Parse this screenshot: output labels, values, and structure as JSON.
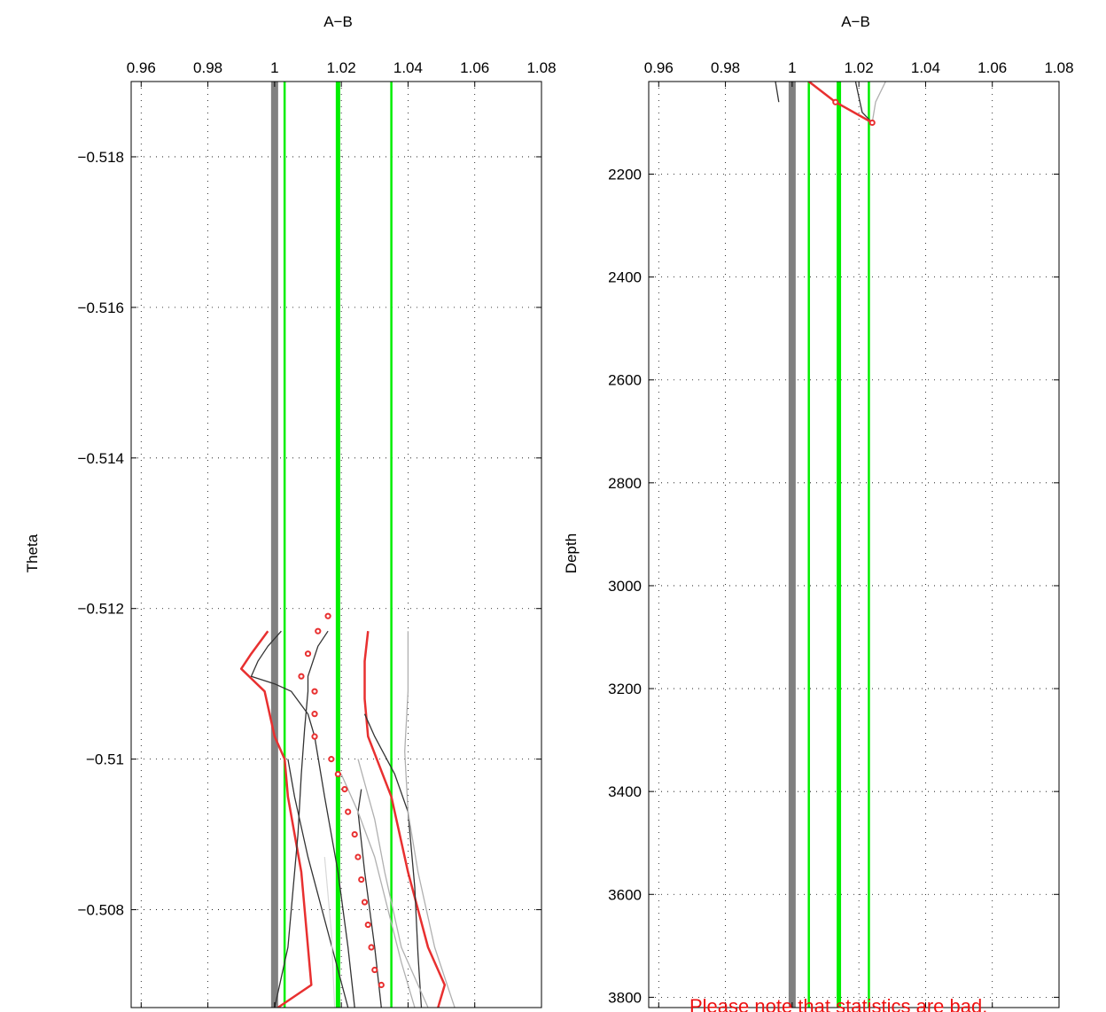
{
  "chart_data": [
    {
      "type": "line",
      "title": "A−B",
      "xlabel": "",
      "ylabel": "Theta",
      "xlim": [
        0.957,
        1.08
      ],
      "ylim": [
        -0.519,
        -0.5067
      ],
      "y_reversed": true,
      "x_axis_position": "top",
      "grid": true,
      "x_ticks": [
        "0.96",
        "0.98",
        "1",
        "1.02",
        "1.04",
        "1.06",
        "1.08"
      ],
      "y_ticks": [
        "−0.508",
        "−0.51",
        "−0.512",
        "−0.514",
        "−0.516",
        "−0.518"
      ],
      "reference_lines": [
        {
          "x": 1.0,
          "color": "#808080",
          "width": 8
        },
        {
          "x": 1.003,
          "color": "#00ee00",
          "width": 2.5
        },
        {
          "x": 1.019,
          "color": "#00ee00",
          "width": 5
        },
        {
          "x": 1.035,
          "color": "#00ee00",
          "width": 2.5
        }
      ],
      "series": [
        {
          "color": "#e83030",
          "width": 2.5,
          "x": [
            1.001,
            1.011,
            1.008,
            1.004,
            1.003,
            1.0,
            0.997,
            0.99,
            0.993,
            0.998
          ],
          "y": [
            -0.5067,
            -0.507,
            -0.5085,
            -0.5095,
            -0.51,
            -0.5103,
            -0.5109,
            -0.5112,
            -0.5114,
            -0.5117
          ]
        },
        {
          "color": "#e83030",
          "width": 2.5,
          "x": [
            1.049,
            1.051,
            1.046,
            1.04,
            1.035,
            1.028,
            1.027,
            1.027,
            1.028
          ],
          "y": [
            -0.5067,
            -0.507,
            -0.5075,
            -0.5085,
            -0.5095,
            -0.5103,
            -0.5108,
            -0.5113,
            -0.5117
          ]
        },
        {
          "color": "#333333",
          "width": 1.3,
          "x": [
            1.0,
            1.004,
            1.007,
            1.008,
            1.009,
            1.01,
            1.01,
            1.013,
            1.016
          ],
          "y": [
            -0.5067,
            -0.5075,
            -0.509,
            -0.5098,
            -0.5104,
            -0.5109,
            -0.5111,
            -0.5115,
            -0.5117
          ]
        },
        {
          "color": "#333333",
          "width": 1.3,
          "x": [
            1.024,
            1.022,
            1.019,
            1.015,
            1.012,
            1.01,
            1.005,
            1.0,
            0.993,
            0.995,
            0.998,
            1.002
          ],
          "y": [
            -0.5067,
            -0.5075,
            -0.5085,
            -0.5095,
            -0.5103,
            -0.5106,
            -0.5109,
            -0.511,
            -0.5111,
            -0.5113,
            -0.5115,
            -0.5117
          ]
        },
        {
          "color": "#333333",
          "width": 1.3,
          "x": [
            1.032,
            1.03,
            1.027,
            1.025,
            1.026
          ],
          "y": [
            -0.5067,
            -0.5075,
            -0.5085,
            -0.5093,
            -0.5096
          ]
        },
        {
          "color": "#333333",
          "width": 1.3,
          "x": [
            1.044,
            1.043,
            1.042,
            1.04,
            1.036,
            1.03,
            1.027
          ],
          "y": [
            -0.5067,
            -0.5074,
            -0.5083,
            -0.5093,
            -0.5098,
            -0.5103,
            -0.5106
          ]
        },
        {
          "color": "#333333",
          "width": 1.3,
          "x": [
            1.022,
            1.016,
            1.01,
            1.006,
            1.004
          ],
          "y": [
            -0.5067,
            -0.5077,
            -0.5087,
            -0.5095,
            -0.51
          ]
        },
        {
          "color": "#b0b0b0",
          "width": 1.3,
          "x": [
            1.046,
            1.038,
            1.033,
            1.03,
            1.025
          ],
          "y": [
            -0.5067,
            -0.5075,
            -0.5085,
            -0.5092,
            -0.51
          ]
        },
        {
          "color": "#b0b0b0",
          "width": 1.3,
          "x": [
            1.054,
            1.048,
            1.043,
            1.04,
            1.039,
            1.04,
            1.04
          ],
          "y": [
            -0.5067,
            -0.5075,
            -0.5085,
            -0.5093,
            -0.5101,
            -0.5109,
            -0.5117
          ]
        },
        {
          "color": "#b0b0b0",
          "width": 1.3,
          "x": [
            1.042,
            1.038,
            1.034,
            1.03,
            1.025,
            1.02
          ],
          "y": [
            -0.5067,
            -0.5073,
            -0.508,
            -0.5087,
            -0.5093,
            -0.5098
          ]
        },
        {
          "color": "#d8d8d8",
          "width": 1.2,
          "x": [
            1.018,
            1.017,
            1.015
          ],
          "y": [
            -0.5067,
            -0.5077,
            -0.5087
          ]
        }
      ],
      "markers": {
        "color": "#e83030",
        "x": [
          1.032,
          1.03,
          1.029,
          1.028,
          1.027,
          1.026,
          1.025,
          1.024,
          1.022,
          1.021,
          1.019,
          1.017,
          1.012,
          1.012,
          1.012,
          1.008,
          1.01,
          1.013,
          1.016
        ],
        "y": [
          -0.507,
          -0.5072,
          -0.5075,
          -0.5078,
          -0.5081,
          -0.5084,
          -0.5087,
          -0.509,
          -0.5093,
          -0.5096,
          -0.5098,
          -0.51,
          -0.5103,
          -0.5106,
          -0.5109,
          -0.5111,
          -0.5114,
          -0.5117,
          -0.5119
        ]
      }
    },
    {
      "type": "line",
      "title": "A−B",
      "xlabel": "",
      "ylabel": "Depth",
      "xlim": [
        0.957,
        1.08
      ],
      "ylim": [
        2020,
        3820
      ],
      "y_reversed": true,
      "x_axis_position": "top",
      "grid": true,
      "x_ticks": [
        "0.96",
        "0.98",
        "1",
        "1.02",
        "1.04",
        "1.06",
        "1.08"
      ],
      "y_ticks": [
        "2200",
        "2400",
        "2600",
        "2800",
        "3000",
        "3200",
        "3400",
        "3600",
        "3800"
      ],
      "reference_lines": [
        {
          "x": 1.0,
          "color": "#808080",
          "width": 8
        },
        {
          "x": 1.005,
          "color": "#00ee00",
          "width": 2.5
        },
        {
          "x": 1.014,
          "color": "#00ee00",
          "width": 5
        },
        {
          "x": 1.023,
          "color": "#00ee00",
          "width": 2.5
        }
      ],
      "series": [
        {
          "color": "#333333",
          "width": 1.3,
          "x": [
            0.995,
            0.996
          ],
          "y": [
            2020,
            2060
          ]
        },
        {
          "color": "#333333",
          "width": 1.3,
          "x": [
            1.019,
            1.02,
            1.021,
            1.024
          ],
          "y": [
            2020,
            2050,
            2080,
            2100
          ]
        },
        {
          "color": "#b0b0b0",
          "width": 1.3,
          "x": [
            1.028,
            1.025,
            1.024
          ],
          "y": [
            2020,
            2060,
            2100
          ]
        },
        {
          "color": "#e83030",
          "width": 2.5,
          "x": [
            1.005,
            1.013,
            1.024
          ],
          "y": [
            2020,
            2060,
            2100
          ]
        }
      ],
      "markers": {
        "color": "#e83030",
        "x": [
          1.013,
          1.024
        ],
        "y": [
          2060,
          2100
        ]
      }
    }
  ],
  "warning_text": "Please note that statistics are bad."
}
